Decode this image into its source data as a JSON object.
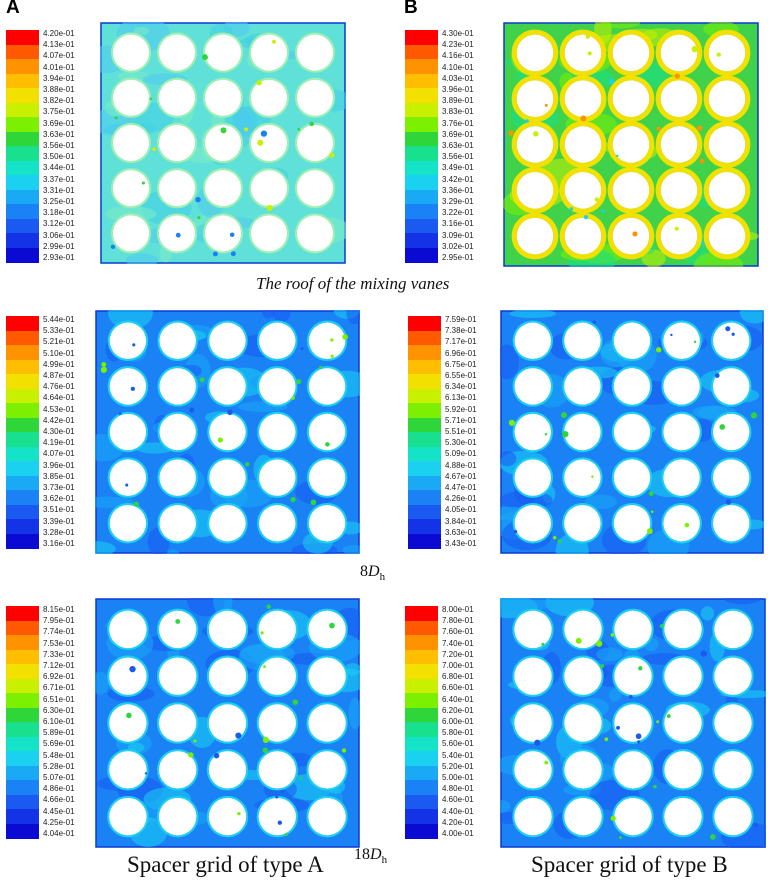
{
  "labels": {
    "panel_a": "A",
    "panel_b": "B"
  },
  "captions": {
    "top": "The roof of the mixing vanes",
    "middle": {
      "prefix": "8",
      "symbol": "D",
      "subscript": "h"
    },
    "bottom": {
      "prefix": "18",
      "symbol": "D",
      "subscript": "h"
    },
    "left": "Spacer grid of type A",
    "right": "Spacer grid of type B"
  },
  "colorbar_palette": [
    "#ff0000",
    "#ff5a00",
    "#ff9200",
    "#ffbf00",
    "#f2e000",
    "#c8f000",
    "#7cf000",
    "#2fd63a",
    "#18e08e",
    "#14e3c8",
    "#1ad2f0",
    "#1aaaf5",
    "#1a82f5",
    "#1a5af0",
    "#1432e6",
    "#0a0ad2"
  ],
  "panels": [
    {
      "id": "a1",
      "palette": "roof-a",
      "ticks": [
        "4.20e-01",
        "4.13e-01",
        "4.07e-01",
        "4.01e-01",
        "3.94e-01",
        "3.88e-01",
        "3.82e-01",
        "3.75e-01",
        "3.69e-01",
        "3.63e-01",
        "3.56e-01",
        "3.50e-01",
        "3.44e-01",
        "3.37e-01",
        "3.31e-01",
        "3.25e-01",
        "3.18e-01",
        "3.12e-01",
        "3.06e-01",
        "2.99e-01",
        "2.93e-01"
      ]
    },
    {
      "id": "b1",
      "palette": "roof-b",
      "ticks": [
        "4.30e-01",
        "4.23e-01",
        "4.16e-01",
        "4.10e-01",
        "4.03e-01",
        "3.96e-01",
        "3.89e-01",
        "3.83e-01",
        "3.76e-01",
        "3.69e-01",
        "3.63e-01",
        "3.56e-01",
        "3.49e-01",
        "3.42e-01",
        "3.36e-01",
        "3.29e-01",
        "3.22e-01",
        "3.16e-01",
        "3.09e-01",
        "3.02e-01",
        "2.95e-01"
      ]
    },
    {
      "id": "a2",
      "palette": "blue",
      "ticks": [
        "5.44e-01",
        "5.33e-01",
        "5.21e-01",
        "5.10e-01",
        "4.99e-01",
        "4.87e-01",
        "4.76e-01",
        "4.64e-01",
        "4.53e-01",
        "4.42e-01",
        "4.30e-01",
        "4.19e-01",
        "4.07e-01",
        "3.96e-01",
        "3.85e-01",
        "3.73e-01",
        "3.62e-01",
        "3.51e-01",
        "3.39e-01",
        "3.28e-01",
        "3.16e-01"
      ]
    },
    {
      "id": "b2",
      "palette": "blue",
      "ticks": [
        "7.59e-01",
        "7.38e-01",
        "7.17e-01",
        "6.96e-01",
        "6.75e-01",
        "6.55e-01",
        "6.34e-01",
        "6.13e-01",
        "5.92e-01",
        "5.71e-01",
        "5.51e-01",
        "5.30e-01",
        "5.09e-01",
        "4.88e-01",
        "4.67e-01",
        "4.47e-01",
        "4.26e-01",
        "4.05e-01",
        "3.84e-01",
        "3.63e-01",
        "3.43e-01"
      ]
    },
    {
      "id": "a3",
      "palette": "blue",
      "ticks": [
        "8.15e-01",
        "7.95e-01",
        "7.74e-01",
        "7.53e-01",
        "7.33e-01",
        "7.12e-01",
        "6.92e-01",
        "6.71e-01",
        "6.51e-01",
        "6.30e-01",
        "6.10e-01",
        "5.89e-01",
        "5.69e-01",
        "5.48e-01",
        "5.28e-01",
        "5.07e-01",
        "4.86e-01",
        "4.66e-01",
        "4.45e-01",
        "4.25e-01",
        "4.04e-01"
      ]
    },
    {
      "id": "b3",
      "palette": "blue",
      "ticks": [
        "8.00e-01",
        "7.80e-01",
        "7.60e-01",
        "7.40e-01",
        "7.20e-01",
        "7.00e-01",
        "6.80e-01",
        "6.60e-01",
        "6.40e-01",
        "6.20e-01",
        "6.00e-01",
        "5.80e-01",
        "5.60e-01",
        "5.40e-01",
        "5.20e-01",
        "5.00e-01",
        "4.80e-01",
        "4.60e-01",
        "4.40e-01",
        "4.20e-01",
        "4.00e-01"
      ]
    }
  ]
}
